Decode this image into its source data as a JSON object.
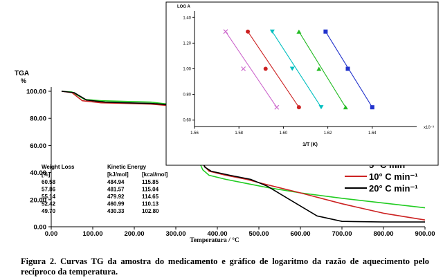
{
  "chart_data": [
    {
      "type": "line",
      "title": "",
      "y_title": "TGA",
      "y_unit": "%",
      "xlabel": "Temperatura / °C",
      "xlim": [
        0,
        900
      ],
      "ylim": [
        0,
        100
      ],
      "x_ticks": [
        "0.00",
        "100.00",
        "200.00",
        "300.00",
        "400.00",
        "500.00",
        "600.00",
        "700.00",
        "800.00",
        "900.00"
      ],
      "y_ticks": [
        "0.00",
        "20.00",
        "40.00",
        "60.00",
        "80.00",
        "100.00"
      ],
      "grid": false,
      "legend_position": "right",
      "series": [
        {
          "name": "5° C min⁻¹",
          "color": "#22cc22",
          "x": [
            25,
            50,
            80,
            120,
            180,
            240,
            280,
            305,
            320,
            335,
            350,
            365,
            380,
            420,
            470,
            520,
            600,
            700,
            800,
            900
          ],
          "y": [
            100,
            99.5,
            94,
            93,
            92.5,
            92,
            90.5,
            86,
            77,
            64,
            52,
            42,
            38,
            35,
            32,
            29,
            25,
            21,
            17.5,
            14
          ]
        },
        {
          "name": "10° C min⁻¹",
          "color": "#cc2222",
          "x": [
            25,
            50,
            75,
            120,
            180,
            240,
            280,
            300,
            320,
            335,
            350,
            365,
            380,
            420,
            470,
            520,
            600,
            700,
            800,
            900
          ],
          "y": [
            100,
            99,
            93,
            91.5,
            91,
            90.5,
            89.5,
            84,
            72,
            62,
            53,
            46,
            41,
            38,
            35,
            31,
            25,
            17,
            10,
            5
          ]
        },
        {
          "name": "20° C min⁻¹",
          "color": "#000000",
          "x": [
            25,
            55,
            85,
            130,
            180,
            240,
            285,
            310,
            325,
            340,
            355,
            370,
            385,
            430,
            480,
            520,
            580,
            640,
            700,
            800,
            900
          ],
          "y": [
            100,
            99,
            93.5,
            92,
            91.5,
            91,
            90,
            86,
            78,
            66,
            56,
            44,
            41,
            38,
            35,
            30,
            19,
            8,
            4,
            3.5,
            3.5
          ]
        }
      ],
      "table": {
        "weight_loss_header": "Weight Loss",
        "weight_loss_unit": "[%]",
        "kinetic_header": "Kinetic Energy",
        "kj_unit": "[kJ/mol]",
        "kcal_unit": "[kcal/mol]",
        "rows": [
          [
            "60.58",
            "484.94",
            "115.85"
          ],
          [
            "57.86",
            "481.57",
            "115.04"
          ],
          [
            "55.14",
            "479.92",
            "114.65"
          ],
          [
            "52.42",
            "460.99",
            "110.13"
          ],
          [
            "49.70",
            "430.33",
            "102.80"
          ]
        ]
      }
    },
    {
      "type": "scatter",
      "title": "",
      "ylabel": "LOG A",
      "xlabel": "1/T (K)",
      "x_multiplier": "x10⁻³",
      "xlim": [
        1.56,
        1.66
      ],
      "ylim": [
        0.55,
        1.45
      ],
      "x_ticks": [
        "1.56",
        "1.58",
        "1.60",
        "1.62",
        "1.64"
      ],
      "y_ticks": [
        "0.60",
        "0.80",
        "1.00",
        "1.20",
        "1.40"
      ],
      "grid": false,
      "series": [
        {
          "marker": "x",
          "color": "#cc66cc",
          "x": [
            1.574,
            1.582,
            1.597
          ],
          "y": [
            1.29,
            1.0,
            0.7
          ]
        },
        {
          "marker": "circle",
          "color": "#cc2222",
          "x": [
            1.584,
            1.592,
            1.607
          ],
          "y": [
            1.29,
            1.0,
            0.7
          ]
        },
        {
          "marker": "triangle-down",
          "color": "#00bfc0",
          "x": [
            1.595,
            1.604,
            1.617
          ],
          "y": [
            1.29,
            1.0,
            0.7
          ]
        },
        {
          "marker": "triangle-up",
          "color": "#22bb22",
          "x": [
            1.607,
            1.616,
            1.628
          ],
          "y": [
            1.29,
            1.0,
            0.7
          ]
        },
        {
          "marker": "square",
          "color": "#2233cc",
          "x": [
            1.619,
            1.629,
            1.64
          ],
          "y": [
            1.29,
            1.0,
            0.7
          ]
        }
      ]
    }
  ],
  "caption": "Figura 2. Curvas TG da amostra do medicamento e gráfico de logaritmo da razão de aquecimento pelo recíproco da temperatura."
}
